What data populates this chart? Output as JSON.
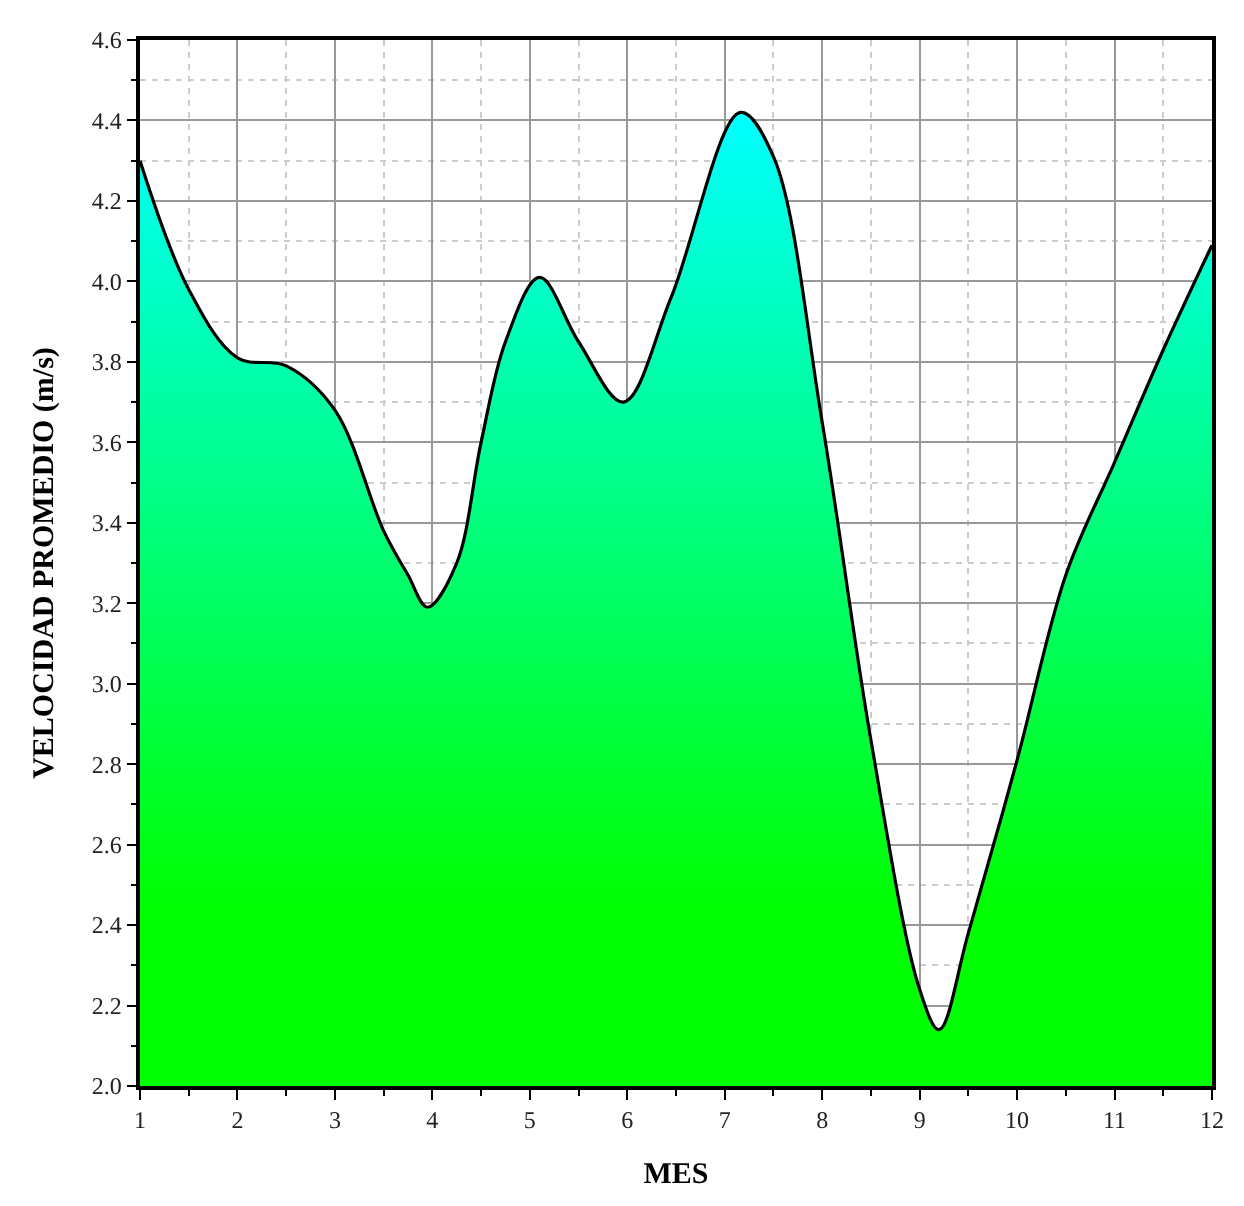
{
  "chart_data": {
    "type": "area",
    "xlabel": "MES",
    "ylabel": "VELOCIDAD PROMEDIO (m/s)",
    "x": [
      1,
      1.5,
      2,
      2.5,
      3,
      3.5,
      3.75,
      3.95,
      4.25,
      4.5,
      4.75,
      5.1,
      5.5,
      5.96,
      6.45,
      7.16,
      7.5,
      8,
      8.5,
      9,
      9.2,
      9.5,
      10,
      10.5,
      11,
      11.5,
      12
    ],
    "series": [
      {
        "color": "#000000",
        "values": [
          4.3,
          3.98,
          3.81,
          3.79,
          3.68,
          3.38,
          3.27,
          3.19,
          3.3,
          3.6,
          3.85,
          4.01,
          3.85,
          3.7,
          3.96,
          4.42,
          4.31,
          3.65,
          2.86,
          2.24,
          2.14,
          2.38,
          2.81,
          3.27,
          3.55,
          3.83,
          4.09
        ]
      }
    ],
    "xlim": [
      1,
      12
    ],
    "xticks": [
      1,
      2,
      3,
      4,
      5,
      6,
      7,
      8,
      9,
      10,
      11,
      12
    ],
    "ylim": [
      2.0,
      4.6
    ],
    "yticks": [
      {
        "value": 2,
        "label": "2.0"
      },
      2.2,
      2.4,
      2.6,
      2.8,
      {
        "value": 3,
        "label": "3.0"
      },
      3.2,
      3.4,
      3.6,
      3.8,
      {
        "value": 4,
        "label": "4.0"
      },
      4.2,
      4.4,
      4.6
    ],
    "grid": true,
    "legend": false
  }
}
